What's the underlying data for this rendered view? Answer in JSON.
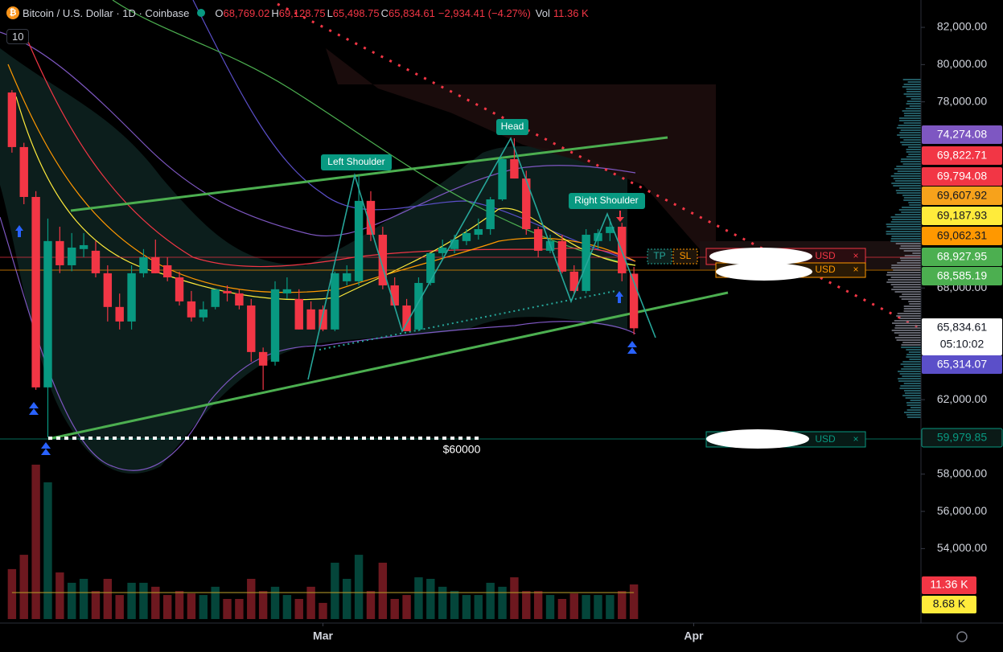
{
  "chart_data": {
    "type": "candlestick",
    "header": {
      "title": "Bitcoin / U.S. Dollar · 1D · Coinbase",
      "ohlc": [
        {
          "key": "O",
          "value": "68,769.02"
        },
        {
          "key": "H",
          "value": "69,128.75"
        },
        {
          "key": "L",
          "value": "65,498.75"
        },
        {
          "key": "C",
          "value": "65,834.61"
        }
      ],
      "change": "−2,934.41 (−4.27%)",
      "volume_key": "Vol",
      "volume_value": "11.36 K",
      "indicator_badge": "10"
    },
    "candles": {
      "open": [
        78500,
        75570,
        72890,
        62660,
        70520,
        69220,
        70090,
        70000,
        68790,
        66980,
        66200,
        68790,
        69650,
        69220,
        68570,
        67280,
        66420,
        66980,
        67840,
        67710,
        67060,
        64560,
        64040,
        67710,
        67410,
        66850,
        66850,
        65770,
        68360,
        68360,
        72680,
        70860,
        68140,
        67060,
        65770,
        68270,
        69870,
        70090,
        70520,
        70860,
        71160,
        72760,
        74920,
        73880,
        71160,
        70000,
        70520,
        68880,
        67840,
        70520,
        70950,
        71290,
        68769.02
      ],
      "high": [
        78630,
        75800,
        73200,
        71730,
        71290,
        70950,
        70950,
        70520,
        69220,
        67700,
        69220,
        70090,
        70600,
        69650,
        68880,
        67840,
        67280,
        67930,
        68140,
        67930,
        67410,
        64800,
        68360,
        68570,
        67930,
        67280,
        67060,
        68880,
        69220,
        74060,
        73200,
        71290,
        68570,
        67410,
        68570,
        69870,
        70600,
        70860,
        71160,
        71730,
        72890,
        75000,
        76040,
        74300,
        71290,
        70860,
        70860,
        69220,
        71160,
        71160,
        71730,
        71500,
        69128.75
      ],
      "low": [
        75270,
        72500,
        62530,
        59980,
        68800,
        68900,
        69650,
        68570,
        66200,
        65770,
        65770,
        68570,
        68790,
        68360,
        67060,
        66200,
        66200,
        66850,
        67280,
        66850,
        64040,
        62530,
        63830,
        67410,
        65770,
        65770,
        65680,
        65680,
        68140,
        68140,
        70520,
        67930,
        66980,
        65680,
        65680,
        68140,
        69650,
        69870,
        70300,
        70600,
        70860,
        72680,
        73880,
        70860,
        69650,
        69870,
        68790,
        67710,
        67710,
        70090,
        70520,
        68360,
        65498.75
      ],
      "close": [
        75570,
        72890,
        62660,
        70520,
        69220,
        70170,
        70300,
        68790,
        66980,
        66200,
        68790,
        69650,
        68790,
        68570,
        67280,
        66420,
        66850,
        67930,
        67710,
        67060,
        64560,
        63830,
        67930,
        67930,
        65770,
        65770,
        65770,
        68790,
        68790,
        72680,
        70860,
        68140,
        67060,
        65680,
        68270,
        69870,
        70170,
        70600,
        70950,
        71160,
        72760,
        74920,
        73880,
        71160,
        70000,
        70520,
        68880,
        67840,
        70860,
        70950,
        71290,
        68790,
        65834.61
      ]
    },
    "volume": {
      "values": [
        16.4,
        21.1,
        50.7,
        44.9,
        15.3,
        11.9,
        13.2,
        9.2,
        13.2,
        7.9,
        11.9,
        11.9,
        10.6,
        7.9,
        9.2,
        8.4,
        7.9,
        10.6,
        6.6,
        6.6,
        13.2,
        9.2,
        10.6,
        7.9,
        6.6,
        10.6,
        5.3,
        18.5,
        13.2,
        21.1,
        9.2,
        18.5,
        6.6,
        7.9,
        13.7,
        13.2,
        10.6,
        9.2,
        7.9,
        7.9,
        11.9,
        10.6,
        13.7,
        9.2,
        9.2,
        7.9,
        6.6,
        8.4,
        7.9,
        7.9,
        7.9,
        9.2,
        11.36
      ],
      "value_labels_last": "11.36 K",
      "ma": {
        "value": 8.68,
        "label": "8.68 K"
      },
      "lim": [
        0,
        52.8
      ]
    },
    "colors": {
      "up": "#089981",
      "down": "#f23645"
    },
    "xlim": [
      -1,
      76
    ],
    "xticks": [
      {
        "value": 26,
        "label": "Mar"
      },
      {
        "value": 57,
        "label": "Apr"
      }
    ],
    "ylim": [
      50000,
      83470
    ],
    "yticks": [
      {
        "value": 82000,
        "label": "82,000.00"
      },
      {
        "value": 80000,
        "label": "80,000.00"
      },
      {
        "value": 78000,
        "label": "78,000.00"
      },
      {
        "value": 68000,
        "label": "68,000.00"
      },
      {
        "value": 62000,
        "label": "62,000.00"
      },
      {
        "value": 58000,
        "label": "58,000.00"
      },
      {
        "value": 56000,
        "label": "56,000.00"
      },
      {
        "value": 54000,
        "label": "54,000.00"
      }
    ],
    "grid": false,
    "price_labels": [
      {
        "value": 74274.08,
        "label": "74,274.08",
        "color": "#7e57c2",
        "text_color": "#ffffff"
      },
      {
        "value": 69822.71,
        "label": "69,822.71",
        "color": "#f23645",
        "text_color": "#ffffff"
      },
      {
        "value": 69794.08,
        "label": "69,794.08",
        "color": "#f23645",
        "text_color": "#ffffff"
      },
      {
        "value": 69607.92,
        "label": "69,607.92",
        "color": "#f7a21b",
        "text_color": "#131722"
      },
      {
        "value": 69187.93,
        "label": "69,187.93",
        "color": "#ffeb3b",
        "text_color": "#131722"
      },
      {
        "value": 69062.31,
        "label": "69,062.31",
        "color": "#ff9800",
        "text_color": "#131722"
      },
      {
        "value": 68927.95,
        "label": "68,927.95",
        "color": "#4caf50",
        "text_color": "#ffffff"
      },
      {
        "value": 68585.19,
        "label": "68,585.19",
        "color": "#4caf50",
        "text_color": "#ffffff"
      },
      {
        "value": 65834.61,
        "label": "65,834.61",
        "color": "#ffffff",
        "text_color": "#131722"
      },
      {
        "value": 65314.07,
        "label": "65,314.07",
        "color": "#5b4fc9",
        "text_color": "#ffffff"
      },
      {
        "value": 59979.85,
        "label": "59,979.85",
        "color": "#0b1a17",
        "text_color": "#089981"
      }
    ],
    "countdown": "05:10:02",
    "annotations": {
      "head": "Head",
      "left_shoulder": "Left Shoulder",
      "right_shoulder": "Right Shoulder",
      "level": "$60000",
      "tp": "TP",
      "sl": "SL",
      "order_currency": [
        "USD",
        "USD",
        "USD"
      ]
    }
  }
}
